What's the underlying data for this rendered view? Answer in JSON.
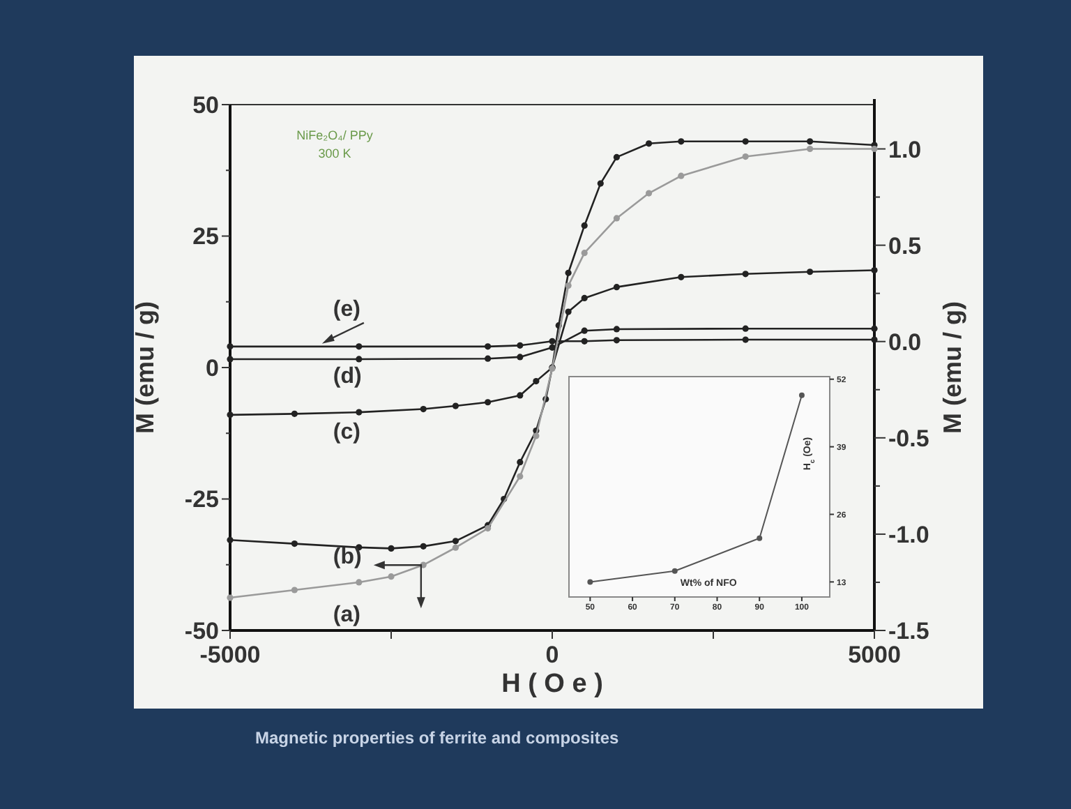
{
  "chart_data": [
    {
      "type": "line",
      "xlabel": "H ( O e )",
      "ylabel": "M (emu / g)",
      "y2label": "M (emu / g)",
      "marker": "circle",
      "xlim": [
        -5000,
        5000
      ],
      "xticks": [
        -5000,
        {
          "value": -2500,
          "label": null
        },
        0,
        {
          "value": 2500,
          "label": null
        },
        5000
      ],
      "ylim": [
        -50,
        50
      ],
      "yticks": [
        -50,
        {
          "value": -37.5,
          "label": null
        },
        -25,
        {
          "value": -12.5,
          "label": null
        },
        0,
        {
          "value": 12.5,
          "label": null
        },
        25,
        {
          "value": 37.5,
          "label": null
        },
        50
      ],
      "y2lim": [
        -1.5,
        1.23
      ],
      "y2ticks": [
        {
          "value": -1.5,
          "label": "-1.5"
        },
        {
          "value": -1.25,
          "label": null
        },
        {
          "value": -1,
          "label": "-1.0"
        },
        {
          "value": -0.75,
          "label": null
        },
        {
          "value": -0.5,
          "label": "-0.5"
        },
        {
          "value": -0.25,
          "label": null
        },
        {
          "value": 0,
          "label": "0.0"
        },
        {
          "value": 0.25,
          "label": null
        },
        {
          "value": 0.5,
          "label": "0.5"
        },
        {
          "value": 0.75,
          "label": null
        },
        {
          "value": 1,
          "label": "1.0"
        }
      ],
      "annotations": [
        "NiFe₂O₄/ PPy",
        "300 K",
        "Magnetic properties of ferrite and composites"
      ],
      "series": [
        {
          "name": "(a)",
          "color": "#9a9a9a",
          "axis": "y2",
          "x": [
            -5000,
            -4000,
            -3000,
            -2500,
            -2000,
            -1500,
            -1000,
            -500,
            -250,
            0,
            250,
            500,
            1000,
            1500,
            2000,
            3000,
            4000,
            5000
          ],
          "values": [
            -1.33,
            -1.29,
            -1.25,
            -1.22,
            -1.16,
            -1.07,
            -0.97,
            -0.7,
            -0.49,
            -0.14,
            0.29,
            0.46,
            0.64,
            0.77,
            0.86,
            0.96,
            1.0,
            1.0
          ]
        },
        {
          "name": "(b)",
          "color": "#222222",
          "x": [
            -5000,
            -4000,
            -3000,
            -2500,
            -2000,
            -1500,
            -1000,
            -750,
            -500,
            -250,
            -100,
            0,
            100,
            250,
            500,
            750,
            1000,
            1500,
            2000,
            3000,
            4000,
            5000
          ],
          "values": [
            -32.8,
            -33.5,
            -34.2,
            -34.4,
            -34,
            -33,
            -30,
            -25,
            -18,
            -12,
            -6,
            0,
            8,
            18,
            27,
            35,
            40,
            42.6,
            43,
            43,
            43,
            42.3
          ]
        },
        {
          "name": "(c)",
          "color": "#222222",
          "x": [
            -5000,
            -4000,
            -3000,
            -2000,
            -1500,
            -1000,
            -500,
            -250,
            0,
            250,
            500,
            1000,
            2000,
            3000,
            4000,
            5000
          ],
          "values": [
            -9,
            -8.8,
            -8.5,
            -7.9,
            -7.3,
            -6.6,
            -5.3,
            -2.6,
            0,
            10.6,
            13.2,
            15.3,
            17.2,
            17.8,
            18.2,
            18.5
          ]
        },
        {
          "name": "(d)",
          "color": "#222222",
          "x": [
            -5000,
            -3000,
            -1000,
            -500,
            0,
            500,
            1000,
            3000,
            5000
          ],
          "values": [
            1.6,
            1.6,
            1.7,
            2,
            3.8,
            7,
            7.3,
            7.4,
            7.4
          ]
        },
        {
          "name": "(e)",
          "color": "#222222",
          "x": [
            -5000,
            -3000,
            -1000,
            -500,
            0,
            500,
            1000,
            3000,
            5000
          ],
          "values": [
            4,
            4,
            4,
            4.2,
            5.0,
            5,
            5.2,
            5.3,
            5.3
          ]
        }
      ]
    },
    {
      "type": "line",
      "xlabel": "Wt% of NFO",
      "ylabel": "H$_{c}$ (Oe)",
      "marker": "circle",
      "xlim": [
        45,
        106.6
      ],
      "xticks": [
        50,
        60,
        70,
        80,
        90,
        100
      ],
      "ylim": [
        10.1,
        52.5
      ],
      "yticks": [
        13,
        26,
        39,
        52
      ],
      "series": [
        {
          "color": "#555555",
          "x": [
            50,
            70,
            90,
            100
          ],
          "values": [
            13,
            15.1,
            21.4,
            48.9
          ]
        }
      ]
    }
  ]
}
